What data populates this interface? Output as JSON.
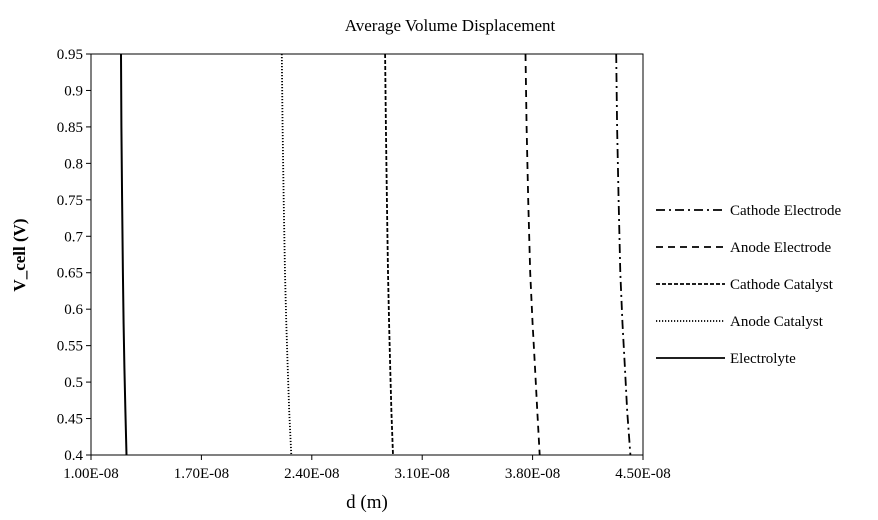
{
  "chart_data": {
    "type": "line",
    "title": "Average Volume Displacement",
    "xlabel": "d (m)",
    "ylabel": "V_cell (V)",
    "xlim": [
      1e-08,
      4.5e-08
    ],
    "ylim": [
      0.4,
      0.95
    ],
    "x_ticks": [
      1e-08,
      1.7e-08,
      2.4e-08,
      3.1e-08,
      3.8e-08,
      4.5e-08
    ],
    "x_tick_labels": [
      "1.00E-08",
      "1.70E-08",
      "2.40E-08",
      "3.10E-08",
      "3.80E-08",
      "4.50E-08"
    ],
    "y_ticks": [
      0.4,
      0.45,
      0.5,
      0.55,
      0.6,
      0.65,
      0.7,
      0.75,
      0.8,
      0.85,
      0.9,
      0.95
    ],
    "y_tick_labels": [
      "0.4",
      "0.45",
      "0.5",
      "0.55",
      "0.6",
      "0.65",
      "0.7",
      "0.75",
      "0.8",
      "0.85",
      "0.9",
      "0.95"
    ],
    "grid": false,
    "legend_position": "right",
    "series": [
      {
        "name": "Cathode Electrode",
        "dash": "dashdot",
        "color": "#000000",
        "x": [
          4.33e-08,
          4.336e-08,
          4.345e-08,
          4.356e-08,
          4.37e-08,
          4.385e-08,
          4.4e-08,
          4.42e-08
        ],
        "y": [
          0.95,
          0.85,
          0.75,
          0.65,
          0.58,
          0.52,
          0.46,
          0.4
        ]
      },
      {
        "name": "Anode Electrode",
        "dash": "dashed",
        "color": "#000000",
        "x": [
          3.755e-08,
          3.762e-08,
          3.772e-08,
          3.785e-08,
          3.8e-08,
          3.815e-08,
          3.83e-08,
          3.845e-08
        ],
        "y": [
          0.95,
          0.85,
          0.75,
          0.65,
          0.58,
          0.52,
          0.46,
          0.4
        ]
      },
      {
        "name": "Cathode Catalyst",
        "dash": "shortdash",
        "color": "#000000",
        "x": [
          2.865e-08,
          2.87e-08,
          2.876e-08,
          2.883e-08,
          2.89e-08,
          2.897e-08,
          2.905e-08,
          2.915e-08
        ],
        "y": [
          0.95,
          0.85,
          0.75,
          0.65,
          0.58,
          0.52,
          0.46,
          0.4
        ]
      },
      {
        "name": "Anode Catalyst",
        "dash": "dotted",
        "color": "#000000",
        "x": [
          2.21e-08,
          2.215e-08,
          2.222e-08,
          2.23e-08,
          2.238e-08,
          2.247e-08,
          2.257e-08,
          2.27e-08
        ],
        "y": [
          0.95,
          0.85,
          0.75,
          0.65,
          0.58,
          0.52,
          0.46,
          0.4
        ]
      },
      {
        "name": "Electrolyte",
        "dash": "solid",
        "color": "#000000",
        "x": [
          1.19e-08,
          1.193e-08,
          1.197e-08,
          1.202e-08,
          1.207e-08,
          1.212e-08,
          1.218e-08,
          1.225e-08
        ],
        "y": [
          0.95,
          0.85,
          0.75,
          0.65,
          0.58,
          0.52,
          0.46,
          0.4
        ]
      }
    ]
  }
}
